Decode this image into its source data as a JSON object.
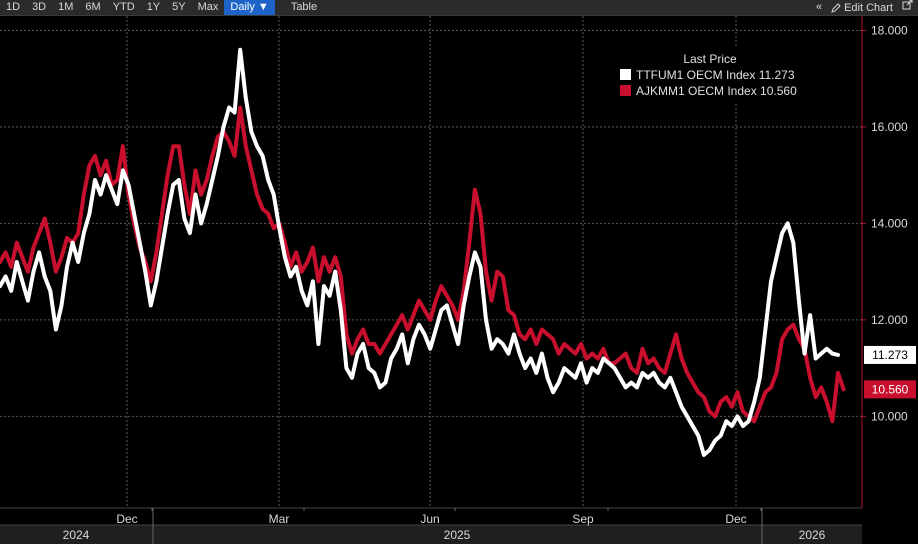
{
  "toolbar": {
    "ranges": [
      "1D",
      "3D",
      "1M",
      "6M",
      "YTD",
      "1Y",
      "5Y",
      "Max"
    ],
    "frequency": "Daily ▼",
    "table": "Table",
    "collapse_icon": "double-chevron-left-icon",
    "edit_label": "Edit Chart",
    "popout_icon": "popout-icon"
  },
  "legend": {
    "title": "Last Price"
  },
  "chart_data": {
    "type": "line",
    "y_ticks": [
      10,
      12,
      14,
      16,
      18
    ],
    "y_tick_labels": [
      "10.000",
      "12.000",
      "14.000",
      "16.000",
      "18.000"
    ],
    "ylim": [
      8.1,
      18.3
    ],
    "x_month_labels": [
      "Dec",
      "Mar",
      "Jun",
      "Sep",
      "Dec"
    ],
    "x_year_labels": [
      "2024",
      "2025",
      "2026"
    ],
    "grid": true,
    "legend_position": "top-right",
    "series": [
      {
        "name": "TTFUM1 OECM Index",
        "value_label": "11.273",
        "last": 11.273,
        "color": "#ffffff",
        "values": [
          12.7,
          12.9,
          12.6,
          13.2,
          12.8,
          12.4,
          13.0,
          13.4,
          12.9,
          12.6,
          11.8,
          12.3,
          13.1,
          13.6,
          13.2,
          13.8,
          14.2,
          14.9,
          14.6,
          15.0,
          14.7,
          14.4,
          15.1,
          14.8,
          14.2,
          13.6,
          13.0,
          12.3,
          12.8,
          13.5,
          14.2,
          14.8,
          14.9,
          14.1,
          13.8,
          14.6,
          14.0,
          14.4,
          14.9,
          15.4,
          16.0,
          16.4,
          16.3,
          17.6,
          16.6,
          15.9,
          15.6,
          15.4,
          14.9,
          14.6,
          13.9,
          13.3,
          12.9,
          13.1,
          12.6,
          12.3,
          12.8,
          11.5,
          12.7,
          12.5,
          13.0,
          12.2,
          11.0,
          10.8,
          11.3,
          11.5,
          11.0,
          10.9,
          10.6,
          10.7,
          11.2,
          11.4,
          11.7,
          11.1,
          11.6,
          11.9,
          11.7,
          11.4,
          11.8,
          12.2,
          12.3,
          11.9,
          11.5,
          12.3,
          12.9,
          13.4,
          13.1,
          12.0,
          11.4,
          11.6,
          11.5,
          11.3,
          11.7,
          11.3,
          11.0,
          11.2,
          10.9,
          11.3,
          10.8,
          10.5,
          10.7,
          11.0,
          10.9,
          10.8,
          11.1,
          10.7,
          11.0,
          10.9,
          11.2,
          11.1,
          11.0,
          10.8,
          10.6,
          10.7,
          10.6,
          10.9,
          10.8,
          10.9,
          10.7,
          10.6,
          10.8,
          10.5,
          10.2,
          10.0,
          9.8,
          9.6,
          9.2,
          9.3,
          9.5,
          9.6,
          9.9,
          9.8,
          10.0,
          9.8,
          9.9,
          10.3,
          10.8,
          11.8,
          12.8,
          13.3,
          13.8,
          14.0,
          13.6,
          12.4,
          11.3,
          12.1,
          11.2,
          11.3,
          11.4,
          11.3,
          11.273
        ]
      },
      {
        "name": "AJKMM1 OECM Index",
        "value_label": "10.560",
        "last": 10.56,
        "color": "#c8102e",
        "values": [
          13.2,
          13.4,
          13.1,
          13.6,
          13.3,
          13.0,
          13.5,
          13.8,
          14.1,
          13.6,
          13.0,
          13.3,
          13.7,
          13.6,
          13.8,
          14.6,
          15.2,
          15.4,
          15.0,
          15.3,
          14.8,
          14.9,
          15.6,
          14.6,
          14.0,
          13.5,
          13.2,
          12.8,
          13.4,
          14.2,
          15.0,
          15.6,
          15.6,
          14.8,
          14.2,
          15.1,
          14.6,
          14.9,
          15.4,
          15.8,
          15.9,
          15.7,
          15.4,
          16.4,
          15.6,
          15.1,
          14.6,
          14.3,
          14.2,
          13.9,
          14.0,
          13.6,
          13.1,
          13.4,
          13.0,
          13.2,
          13.5,
          12.8,
          13.3,
          13.0,
          13.3,
          12.9,
          11.7,
          11.3,
          11.6,
          11.8,
          11.5,
          11.5,
          11.3,
          11.5,
          11.7,
          11.9,
          12.1,
          11.8,
          12.1,
          12.4,
          12.2,
          12.0,
          12.4,
          12.7,
          12.5,
          12.3,
          12.0,
          12.6,
          13.6,
          14.7,
          14.2,
          13.0,
          12.4,
          13.0,
          12.9,
          12.2,
          12.1,
          11.7,
          11.6,
          11.8,
          11.5,
          11.8,
          11.7,
          11.6,
          11.3,
          11.5,
          11.4,
          11.3,
          11.5,
          11.2,
          11.3,
          11.2,
          11.4,
          11.1,
          11.1,
          11.2,
          11.3,
          11.0,
          10.9,
          11.4,
          11.1,
          11.2,
          11.0,
          10.9,
          11.3,
          11.7,
          11.2,
          10.9,
          10.7,
          10.5,
          10.4,
          10.1,
          10.0,
          10.3,
          10.4,
          10.2,
          10.5,
          10.1,
          10.0,
          9.9,
          10.2,
          10.5,
          10.6,
          10.9,
          11.6,
          11.8,
          11.9,
          11.6,
          11.4,
          10.8,
          10.4,
          10.6,
          10.3,
          9.9,
          10.9,
          10.56
        ]
      }
    ]
  }
}
